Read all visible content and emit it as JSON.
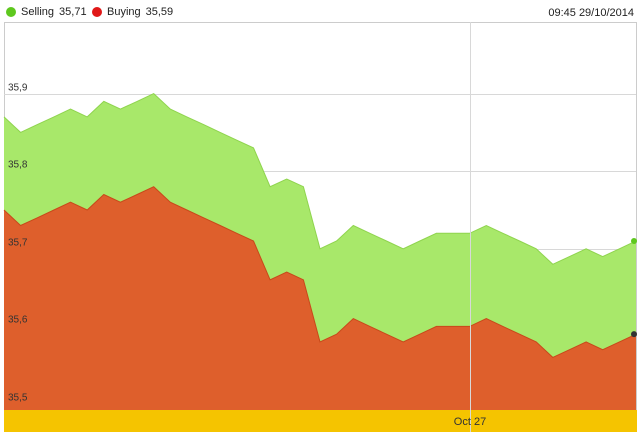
{
  "colors": {
    "selling": "#a8e86a",
    "buying": "#de5f2c",
    "selling_dot": "#5ec81e",
    "buying_dot": "#e01818",
    "timeline": "#f5c400"
  },
  "legend": {
    "selling": {
      "name": "Selling",
      "value": "35,71"
    },
    "buying": {
      "name": "Buying",
      "value": "35,59"
    }
  },
  "timestamp": "09:45 29/10/2014",
  "chart_data": {
    "type": "area",
    "ylim": [
      35.5,
      36.0
    ],
    "y_ticks": [
      "35,5",
      "35,6",
      "35,7",
      "35,8",
      "35,9"
    ],
    "y_tick_values": [
      35.5,
      35.6,
      35.7,
      35.8,
      35.9
    ],
    "x_label": "Oct 27",
    "grid": true,
    "legend_position": "top-left",
    "x": [
      0,
      1,
      2,
      3,
      4,
      5,
      6,
      7,
      8,
      9,
      10,
      11,
      12,
      13,
      14,
      15,
      16,
      17,
      18,
      19,
      20,
      21,
      22,
      23,
      24,
      25,
      26,
      27,
      28,
      29,
      30,
      31,
      32,
      33,
      34,
      35,
      36,
      37,
      38
    ],
    "series": [
      {
        "name": "Selling",
        "values": [
          35.87,
          35.85,
          35.86,
          35.87,
          35.88,
          35.87,
          35.89,
          35.88,
          35.89,
          35.9,
          35.88,
          35.87,
          35.86,
          35.85,
          35.84,
          35.83,
          35.78,
          35.79,
          35.78,
          35.7,
          35.71,
          35.73,
          35.72,
          35.71,
          35.7,
          35.71,
          35.72,
          35.72,
          35.72,
          35.73,
          35.72,
          35.71,
          35.7,
          35.68,
          35.69,
          35.7,
          35.69,
          35.7,
          35.71
        ]
      },
      {
        "name": "Buying",
        "values": [
          35.75,
          35.73,
          35.74,
          35.75,
          35.76,
          35.75,
          35.77,
          35.76,
          35.77,
          35.78,
          35.76,
          35.75,
          35.74,
          35.73,
          35.72,
          35.71,
          35.66,
          35.67,
          35.66,
          35.58,
          35.59,
          35.61,
          35.6,
          35.59,
          35.58,
          35.59,
          35.6,
          35.6,
          35.6,
          35.61,
          35.6,
          35.59,
          35.58,
          35.56,
          35.57,
          35.58,
          35.57,
          35.58,
          35.59
        ]
      }
    ]
  }
}
